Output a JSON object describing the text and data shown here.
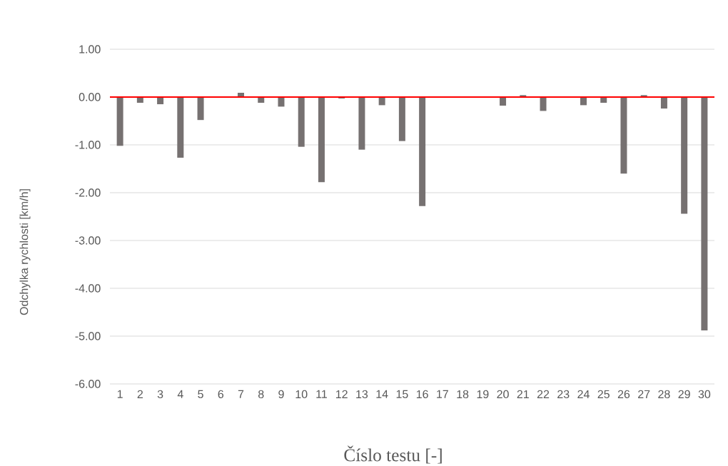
{
  "chart_data": {
    "type": "bar",
    "xlabel": "Číslo testu [-]",
    "ylabel": "Odchylka rychlosti [km/h]",
    "categories": [
      "1",
      "2",
      "3",
      "4",
      "5",
      "6",
      "7",
      "8",
      "9",
      "10",
      "11",
      "12",
      "13",
      "14",
      "15",
      "16",
      "17",
      "18",
      "19",
      "20",
      "21",
      "22",
      "23",
      "24",
      "25",
      "26",
      "27",
      "28",
      "29",
      "30"
    ],
    "values": [
      -1.02,
      -0.12,
      -0.15,
      -1.27,
      -0.48,
      0,
      0.09,
      -0.12,
      -0.2,
      -1.04,
      -1.78,
      -0.03,
      -1.1,
      -0.17,
      -0.92,
      -2.28,
      0,
      0,
      0,
      -0.18,
      0.04,
      -0.29,
      0,
      -0.17,
      -0.12,
      -1.6,
      0.04,
      -0.24,
      -2.44,
      -4.88
    ],
    "color": "#767171",
    "ylim": [
      -6,
      1
    ],
    "yticks": [
      {
        "value": 1,
        "label": "1.00"
      },
      {
        "value": 0,
        "label": "0.00"
      },
      {
        "value": -1,
        "label": "-1.00"
      },
      {
        "value": -2,
        "label": "-2.00"
      },
      {
        "value": -3,
        "label": "-3.00"
      },
      {
        "value": -4,
        "label": "-4.00"
      },
      {
        "value": -5,
        "label": "-5.00"
      },
      {
        "value": -6,
        "label": "-6.00"
      }
    ],
    "grid": "y",
    "ref_lines": [
      {
        "axis": "y",
        "value": 0,
        "color": "#ff0000"
      }
    ]
  }
}
